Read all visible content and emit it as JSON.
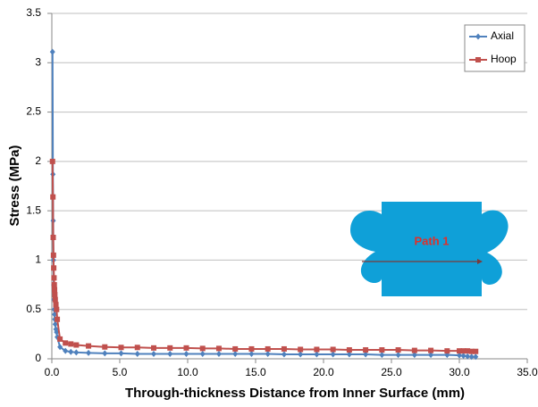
{
  "chart_data": {
    "type": "line",
    "x_label": "Through-thickness Distance from Inner Surface (mm)",
    "y_label": "Stress (MPa)",
    "annotation": "Path 1",
    "x": [
      0.05,
      0.08,
      0.1,
      0.12,
      0.14,
      0.16,
      0.18,
      0.2,
      0.22,
      0.25,
      0.3,
      0.35,
      0.4,
      0.6,
      1.0,
      1.4,
      1.8,
      2.7,
      3.9,
      5.1,
      6.3,
      7.5,
      8.7,
      9.9,
      11.1,
      12.3,
      13.5,
      14.7,
      15.9,
      17.1,
      18.3,
      19.5,
      20.7,
      21.9,
      23.1,
      24.3,
      25.5,
      26.7,
      27.9,
      29.1,
      30.0,
      30.3,
      30.6,
      30.9,
      31.2
    ],
    "series": [
      {
        "name": "Axial",
        "color": "#4f81bd",
        "marker": "diamond",
        "values": [
          3.11,
          1.87,
          1.4,
          1.0,
          0.75,
          0.6,
          0.5,
          0.45,
          0.4,
          0.35,
          0.3,
          0.27,
          0.22,
          0.12,
          0.08,
          0.07,
          0.065,
          0.06,
          0.055,
          0.055,
          0.05,
          0.05,
          0.05,
          0.05,
          0.05,
          0.05,
          0.05,
          0.05,
          0.05,
          0.045,
          0.045,
          0.045,
          0.045,
          0.045,
          0.045,
          0.04,
          0.04,
          0.04,
          0.04,
          0.04,
          0.035,
          0.03,
          0.025,
          0.02,
          0.02
        ]
      },
      {
        "name": "Hoop",
        "color": "#c0504d",
        "marker": "square",
        "values": [
          2.0,
          1.64,
          1.23,
          1.05,
          0.92,
          0.82,
          0.75,
          0.7,
          0.65,
          0.6,
          0.55,
          0.5,
          0.4,
          0.2,
          0.16,
          0.15,
          0.14,
          0.13,
          0.12,
          0.115,
          0.115,
          0.11,
          0.11,
          0.11,
          0.105,
          0.105,
          0.1,
          0.1,
          0.1,
          0.1,
          0.095,
          0.095,
          0.095,
          0.09,
          0.09,
          0.09,
          0.09,
          0.085,
          0.085,
          0.08,
          0.08,
          0.08,
          0.08,
          0.075,
          0.075
        ]
      }
    ],
    "xlim": [
      0,
      35
    ],
    "xticks": [
      {
        "value": 0,
        "label": "0.0"
      },
      {
        "value": 5,
        "label": "5.0"
      },
      {
        "value": 10,
        "label": "10.0"
      },
      {
        "value": 15,
        "label": "15.0"
      },
      {
        "value": 20,
        "label": "20.0"
      },
      {
        "value": 25,
        "label": "25.0"
      },
      {
        "value": 30,
        "label": "30.0"
      },
      {
        "value": 35,
        "label": "35.0"
      }
    ],
    "ylim": [
      0,
      3.5
    ],
    "yticks": [
      0,
      0.5,
      1,
      1.5,
      2,
      2.5,
      3,
      3.5
    ],
    "grid": true,
    "legend": "top-right"
  }
}
